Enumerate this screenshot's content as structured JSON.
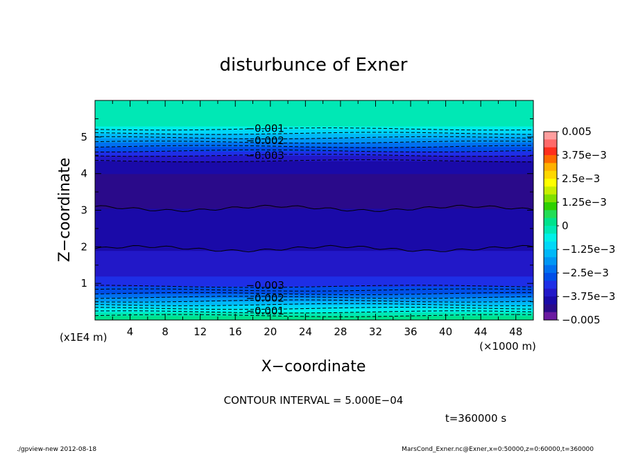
{
  "chart_data": {
    "type": "heatmap",
    "title": "disturbunce of Exner",
    "xlabel": "X−coordinate",
    "ylabel": "Z−coordinate",
    "xlim": [
      0,
      50
    ],
    "ylim": [
      0,
      6
    ],
    "x_unit_label": "(×1000 m)",
    "y_unit_label": "(x1E4 m)",
    "x_ticks": [
      "4",
      "8",
      "12",
      "16",
      "20",
      "24",
      "28",
      "32",
      "36",
      "40",
      "44",
      "48"
    ],
    "y_ticks": [
      "1",
      "2",
      "3",
      "4",
      "5"
    ],
    "colorbar": {
      "labels": [
        "0.005",
        "3.75e−3",
        "2.5e−3",
        "1.25e−3",
        "0",
        "−1.25e−3",
        "−2.5e−3",
        "−3.75e−3",
        "−0.005"
      ],
      "colors": [
        "#ff9e9e",
        "#ff6a6a",
        "#ff2f1c",
        "#ff6a00",
        "#ffb000",
        "#ffd700",
        "#ffff00",
        "#c8ee00",
        "#7fe000",
        "#2ed000",
        "#22dd55",
        "#00e28c",
        "#00e8b5",
        "#00f0e8",
        "#00d8f8",
        "#00b8f8",
        "#0096f4",
        "#0070f0",
        "#004ee8",
        "#1e2ee6",
        "#2218c8",
        "#1a0aa8",
        "#2a0a8a",
        "#6b1aa0"
      ]
    },
    "contour_labels": [
      {
        "text": "−0.001",
        "x": 19.4,
        "z": 5.23
      },
      {
        "text": "−0.002",
        "x": 19.4,
        "z": 4.9
      },
      {
        "text": "−0.003",
        "x": 19.4,
        "z": 4.5
      },
      {
        "text": "−0.003",
        "x": 19.4,
        "z": 0.95
      },
      {
        "text": "−0.002",
        "x": 19.4,
        "z": 0.6
      },
      {
        "text": "−0.001",
        "x": 19.4,
        "z": 0.25
      }
    ],
    "profile": [
      {
        "z": 0.0,
        "value": 5e-05
      },
      {
        "z": 0.12,
        "value": -0.0001
      },
      {
        "z": 0.22,
        "value": -0.0005
      },
      {
        "z": 0.32,
        "value": -0.0009
      },
      {
        "z": 0.42,
        "value": -0.0013
      },
      {
        "z": 0.52,
        "value": -0.0017
      },
      {
        "z": 0.62,
        "value": -0.0021
      },
      {
        "z": 0.72,
        "value": -0.0025
      },
      {
        "z": 0.82,
        "value": -0.0029
      },
      {
        "z": 0.92,
        "value": -0.0033
      },
      {
        "z": 1.2,
        "value": -0.0037
      },
      {
        "z": 1.9,
        "value": -0.0041
      },
      {
        "z": 3.05,
        "value": -0.0042
      },
      {
        "z": 4.0,
        "value": -0.0038
      },
      {
        "z": 4.35,
        "value": -0.0034
      },
      {
        "z": 4.5,
        "value": -0.003
      },
      {
        "z": 4.62,
        "value": -0.0026
      },
      {
        "z": 4.74,
        "value": -0.0022
      },
      {
        "z": 4.86,
        "value": -0.0018
      },
      {
        "z": 4.98,
        "value": -0.0014
      },
      {
        "z": 5.1,
        "value": -0.001
      },
      {
        "z": 5.22,
        "value": -0.0006
      },
      {
        "z": 5.3,
        "value": -0.0002
      },
      {
        "z": 6.0,
        "value": 0.0
      }
    ]
  },
  "footer": {
    "contour_interval": "CONTOUR INTERVAL = 5.000E−04",
    "time": "t=360000 s",
    "left_note": "./gpview-new   2012-08-18",
    "right_note": "MarsCond_Exner.nc@Exner,x=0:50000,z=0:60000,t=360000"
  }
}
